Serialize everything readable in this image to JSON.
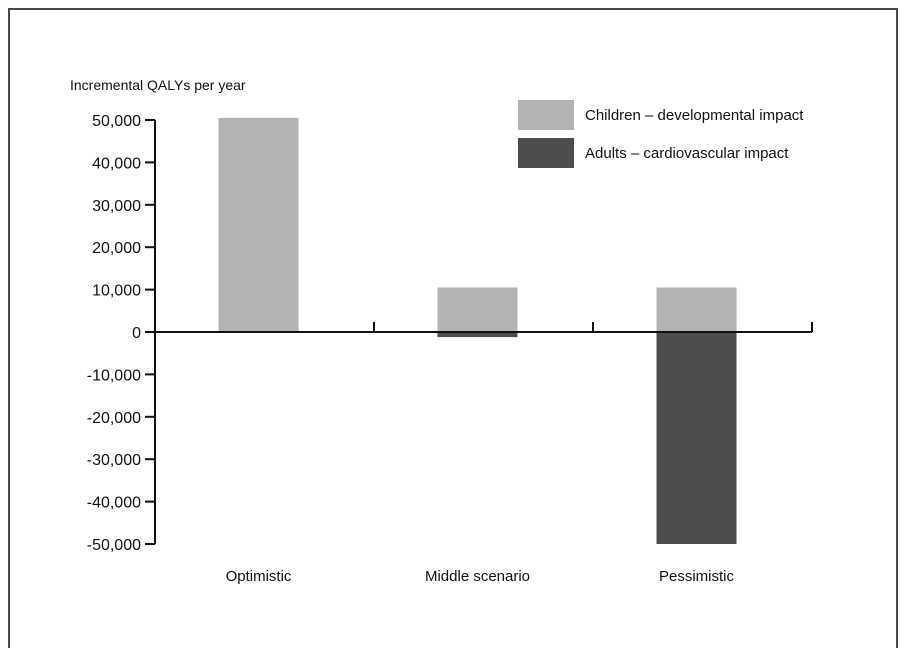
{
  "chart_data": {
    "type": "bar",
    "title": "",
    "xlabel": "",
    "ylabel": "Incremental QALYs per year",
    "categories": [
      "Optimistic",
      "Middle scenario",
      "Pessimistic"
    ],
    "series": [
      {
        "name": "Children – developmental impact",
        "color": "#b3b3b3",
        "values": [
          50500,
          10500,
          10500
        ]
      },
      {
        "name": "Adults – cardiovascular impact",
        "color": "#4d4d4d",
        "values": [
          0,
          -1200,
          -50000
        ]
      }
    ],
    "ylim": [
      -50000,
      50000
    ],
    "yticks": [
      50000,
      40000,
      30000,
      20000,
      10000,
      0,
      -10000,
      -20000,
      -30000,
      -40000,
      -50000
    ],
    "ytick_labels": [
      "50,000",
      "40,000",
      "30,000",
      "20,000",
      "10,000",
      "0",
      "-10,000",
      "-20,000",
      "-30,000",
      "-40,000",
      "-50,000"
    ],
    "grid": false,
    "legend": "top-right"
  }
}
